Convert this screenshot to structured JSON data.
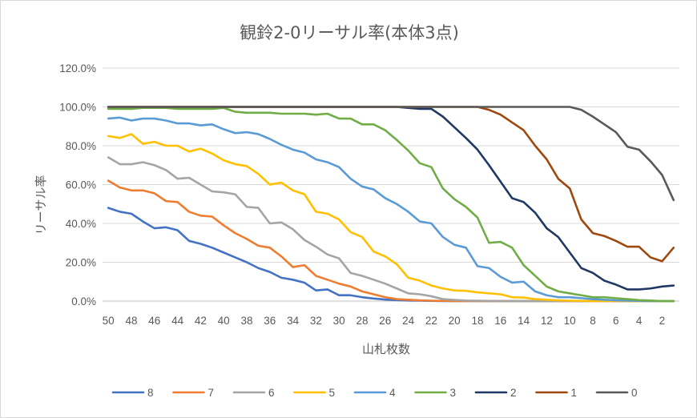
{
  "chart_data": {
    "type": "line",
    "title": "観鈴2-0リーサル率(本体3点)",
    "xlabel": "山札枚数",
    "ylabel": "リーサル率",
    "x": [
      50,
      49,
      48,
      47,
      46,
      45,
      44,
      43,
      42,
      41,
      40,
      39,
      38,
      37,
      36,
      35,
      34,
      33,
      32,
      31,
      30,
      29,
      28,
      27,
      26,
      25,
      24,
      23,
      22,
      21,
      20,
      19,
      18,
      17,
      16,
      15,
      14,
      13,
      12,
      11,
      10,
      9,
      8,
      7,
      6,
      5,
      4,
      3,
      2,
      1
    ],
    "x_tick_labels": [
      "50",
      "48",
      "46",
      "44",
      "42",
      "40",
      "38",
      "36",
      "34",
      "32",
      "30",
      "28",
      "26",
      "24",
      "22",
      "20",
      "18",
      "16",
      "14",
      "12",
      "10",
      "8",
      "6",
      "4",
      "2"
    ],
    "x_reversed": true,
    "ylim": [
      0,
      120
    ],
    "y_tick_labels": [
      "0.0%",
      "20.0%",
      "40.0%",
      "60.0%",
      "80.0%",
      "100.0%",
      "120.0%"
    ],
    "grid": "horizontal",
    "legend_position": "bottom",
    "series": [
      {
        "name": "8",
        "color": "#4472c4",
        "values": [
          48,
          46,
          45,
          41,
          37.5,
          38,
          36.5,
          31,
          29.5,
          27.5,
          25,
          22.5,
          20,
          17,
          15,
          12,
          11,
          9.5,
          5.5,
          6,
          3,
          3,
          2,
          1.3,
          0.8,
          0.5,
          0.3,
          0.2,
          0.1,
          0,
          0,
          0,
          0,
          0,
          0,
          0,
          0,
          0,
          0,
          0,
          0,
          0,
          0,
          0,
          0,
          0,
          0,
          0,
          0,
          0
        ]
      },
      {
        "name": "7",
        "color": "#ed7d31",
        "values": [
          62,
          58.5,
          57,
          57,
          55.5,
          51.5,
          51,
          46,
          44,
          43.5,
          39,
          35,
          32,
          28.5,
          27.5,
          23,
          17.5,
          18.5,
          13,
          11,
          9,
          7.5,
          5,
          3.5,
          2,
          1,
          0.7,
          0.4,
          0.2,
          0.1,
          0,
          0,
          0,
          0,
          0,
          0,
          0,
          0,
          0,
          0,
          0,
          0,
          0,
          0,
          0,
          0,
          0,
          0,
          0,
          0
        ]
      },
      {
        "name": "6",
        "color": "#a5a5a5",
        "values": [
          74,
          70.5,
          70.5,
          71.5,
          70,
          67.5,
          63,
          63.5,
          60,
          56.5,
          56,
          55,
          48.5,
          48,
          40,
          40.5,
          37,
          31.5,
          28,
          24,
          22,
          14.5,
          13,
          11,
          9,
          6.5,
          4,
          3.5,
          2.5,
          1,
          0.6,
          0.3,
          0.2,
          0.1,
          0,
          0,
          0,
          0,
          0,
          0,
          0,
          0,
          0,
          0,
          0,
          0,
          0,
          0,
          0,
          0
        ]
      },
      {
        "name": "5",
        "color": "#ffc000",
        "values": [
          85,
          84,
          86,
          81,
          82,
          80,
          80,
          77,
          78.5,
          76,
          72.5,
          70.5,
          69.5,
          65.5,
          60,
          61,
          57,
          55,
          46,
          45,
          42,
          35.5,
          33,
          25.5,
          23,
          19,
          12,
          10.5,
          8,
          6.5,
          5.5,
          5.3,
          4.5,
          4,
          3.5,
          2,
          1.8,
          1,
          0.7,
          0.4,
          0.2,
          0.1,
          0,
          0,
          0,
          0,
          0,
          0,
          0,
          0
        ]
      },
      {
        "name": "4",
        "color": "#5b9bd5",
        "values": [
          94,
          94.5,
          93,
          94,
          94,
          93,
          91.5,
          91.5,
          90.5,
          91,
          88.5,
          86.5,
          87,
          86,
          83.5,
          80.5,
          78,
          76.5,
          73,
          71.5,
          69,
          63,
          59,
          57.5,
          53,
          50,
          46,
          41,
          40,
          33,
          29,
          27.5,
          18,
          17,
          12.5,
          9.5,
          10,
          5,
          3,
          2,
          2,
          1.5,
          1,
          0.7,
          0.4,
          0.2,
          0.1,
          0,
          0,
          0
        ]
      },
      {
        "name": "3",
        "color": "#70ad47",
        "values": [
          99,
          99,
          99,
          99.5,
          99.5,
          99.5,
          99,
          99,
          99,
          99,
          99.5,
          97.5,
          97,
          97,
          97,
          96.5,
          96.5,
          96.5,
          96,
          96.5,
          94,
          94,
          91,
          91,
          88,
          83,
          77.5,
          71,
          69,
          58,
          52.5,
          48.5,
          43,
          30,
          30.5,
          27.5,
          18.5,
          13,
          7.5,
          5,
          4,
          3,
          2,
          2,
          1.5,
          1,
          0.5,
          0.3,
          0,
          0
        ]
      },
      {
        "name": "2",
        "color": "#203864",
        "values": [
          100,
          100,
          100,
          100,
          100,
          100,
          100,
          100,
          100,
          100,
          100,
          100,
          100,
          100,
          100,
          100,
          100,
          100,
          100,
          100,
          100,
          100,
          100,
          100,
          100,
          100,
          99.5,
          99,
          99,
          95,
          89.5,
          84,
          78,
          70,
          61.5,
          53,
          51,
          45.5,
          37.5,
          33,
          25,
          17,
          14.5,
          10.5,
          8.5,
          6,
          6,
          6.5,
          7.5,
          8
        ]
      },
      {
        "name": "1",
        "color": "#9e480e",
        "values": [
          100,
          100,
          100,
          100,
          100,
          100,
          100,
          100,
          100,
          100,
          100,
          100,
          100,
          100,
          100,
          100,
          100,
          100,
          100,
          100,
          100,
          100,
          100,
          100,
          100,
          100,
          100,
          100,
          100,
          100,
          100,
          100,
          100,
          98.5,
          96,
          92,
          88,
          80,
          73,
          63,
          58,
          42,
          35,
          33.5,
          31,
          28,
          28,
          22.5,
          20.5,
          27.5
        ]
      },
      {
        "name": "0",
        "color": "#595959",
        "values": [
          100,
          100,
          100,
          100,
          100,
          100,
          100,
          100,
          100,
          100,
          100,
          100,
          100,
          100,
          100,
          100,
          100,
          100,
          100,
          100,
          100,
          100,
          100,
          100,
          100,
          100,
          100,
          100,
          100,
          100,
          100,
          100,
          100,
          100,
          100,
          100,
          100,
          100,
          100,
          100,
          100,
          98.5,
          95,
          91,
          87,
          79.5,
          78,
          72,
          65,
          52
        ]
      }
    ]
  }
}
